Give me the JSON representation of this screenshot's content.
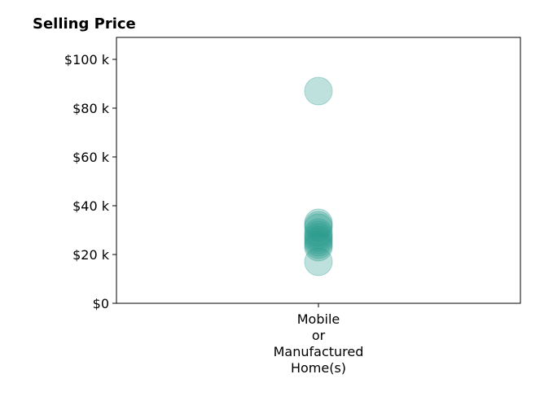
{
  "chart_data": {
    "type": "scatter",
    "title": "Selling Price",
    "xlabel": "",
    "ylabel": "",
    "categories": [
      "Mobile or Manufactured Home(s)"
    ],
    "category_label_lines": [
      "Mobile",
      "or",
      "Manufactured",
      "Home(s)"
    ],
    "ylim": [
      0,
      109000
    ],
    "yticks": [
      0,
      20000,
      40000,
      60000,
      80000,
      100000
    ],
    "ytick_labels": [
      "$0",
      "$20 k",
      "$40 k",
      "$60 k",
      "$80 k",
      "$100 k"
    ],
    "grid": false,
    "marker_color": "#2a9d8f",
    "marker_opacity": 0.3,
    "series": [
      {
        "category": "Mobile or Manufactured Home(s)",
        "values": [
          87000,
          33000,
          32000,
          31000,
          29000,
          28000,
          27000,
          26000,
          25000,
          24000,
          23000,
          17000
        ]
      }
    ]
  }
}
